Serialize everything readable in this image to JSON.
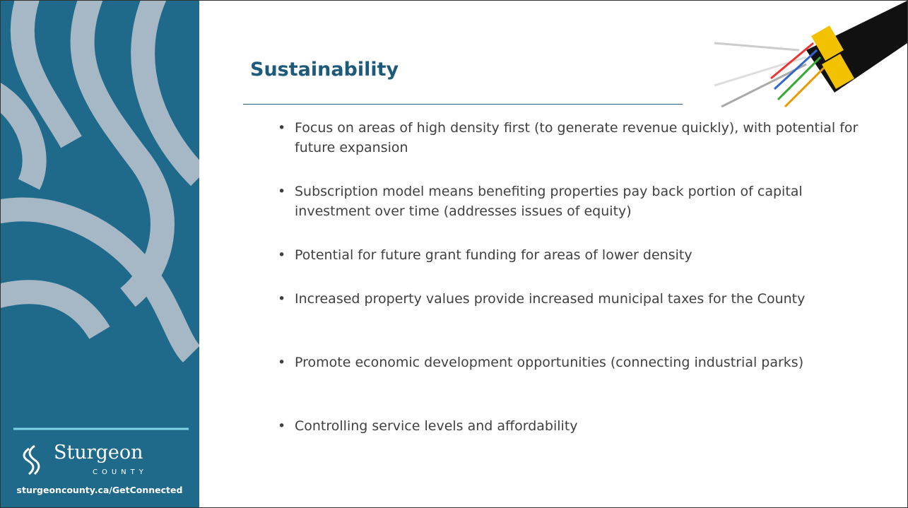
{
  "sidebar": {
    "logo_name": "Sturgeon",
    "logo_sub": "COUNTY",
    "url": "sturgeoncounty.ca/GetConnected"
  },
  "title": "Sustainability",
  "bullets": [
    "Focus on areas of high density first (to generate revenue quickly), with potential for future expansion",
    "Subscription model means benefiting properties pay back portion of capital investment over time (addresses issues of equity)",
    "Potential for future grant funding for areas of lower density",
    "Increased property values provide increased municipal taxes for the County",
    "Promote economic development opportunities (connecting industrial parks)",
    "Controlling service levels and affordability"
  ]
}
